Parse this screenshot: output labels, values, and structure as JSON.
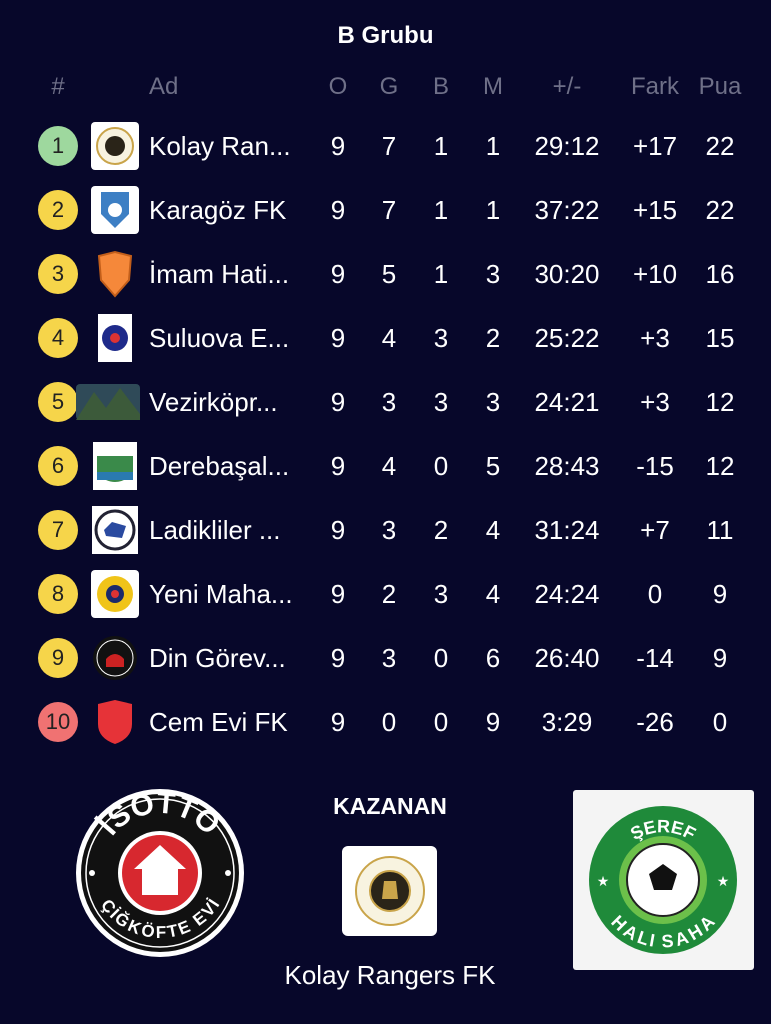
{
  "title": "B Grubu",
  "columns": {
    "pos": "#",
    "name": "Ad",
    "played": "O",
    "won": "G",
    "drawn": "B",
    "lost": "M",
    "goals": "+/-",
    "diff": "Fark",
    "points": "Pua"
  },
  "colors": {
    "background": "#07072a",
    "promotion": "#9ed89e",
    "mid": "#f6d54a",
    "relegation": "#f07272",
    "header_text": "#6f7088"
  },
  "rows": [
    {
      "pos": "1",
      "zone": "promotion",
      "name": "Kolay Ran...",
      "o": "9",
      "g": "7",
      "b": "1",
      "m": "1",
      "goals": "29:12",
      "diff": "+17",
      "pts": "22",
      "logo": "kolay-rangers-logo"
    },
    {
      "pos": "2",
      "zone": "mid",
      "name": "Karagöz FK",
      "o": "9",
      "g": "7",
      "b": "1",
      "m": "1",
      "goals": "37:22",
      "diff": "+15",
      "pts": "22",
      "logo": "karagoz-logo"
    },
    {
      "pos": "3",
      "zone": "mid",
      "name": "İmam Hati...",
      "o": "9",
      "g": "5",
      "b": "1",
      "m": "3",
      "goals": "30:20",
      "diff": "+10",
      "pts": "16",
      "logo": "orange-shield-logo"
    },
    {
      "pos": "4",
      "zone": "mid",
      "name": "Suluova E...",
      "o": "9",
      "g": "4",
      "b": "3",
      "m": "2",
      "goals": "25:22",
      "diff": "+3",
      "pts": "15",
      "logo": "police-logo"
    },
    {
      "pos": "5",
      "zone": "mid",
      "name": "Vezirköpr...",
      "o": "9",
      "g": "3",
      "b": "3",
      "m": "3",
      "goals": "24:21",
      "diff": "+3",
      "pts": "12",
      "logo": "landscape-photo"
    },
    {
      "pos": "6",
      "zone": "mid",
      "name": "Derebaşal...",
      "o": "9",
      "g": "4",
      "b": "0",
      "m": "5",
      "goals": "28:43",
      "diff": "-15",
      "pts": "12",
      "logo": "derebasalan-logo"
    },
    {
      "pos": "7",
      "zone": "mid",
      "name": "Ladikliler ...",
      "o": "9",
      "g": "3",
      "b": "2",
      "m": "4",
      "goals": "31:24",
      "diff": "+7",
      "pts": "11",
      "logo": "ladikliler-logo"
    },
    {
      "pos": "8",
      "zone": "mid",
      "name": "Yeni Maha...",
      "o": "9",
      "g": "2",
      "b": "3",
      "m": "4",
      "goals": "24:24",
      "diff": "0",
      "pts": "9",
      "logo": "yeni-mahalle-logo"
    },
    {
      "pos": "9",
      "zone": "mid",
      "name": "Din Görev...",
      "o": "9",
      "g": "3",
      "b": "0",
      "m": "6",
      "goals": "26:40",
      "diff": "-14",
      "pts": "9",
      "logo": "din-gorevlileri-logo"
    },
    {
      "pos": "10",
      "zone": "relegation",
      "name": "Cem Evi FK",
      "o": "9",
      "g": "0",
      "b": "0",
      "m": "9",
      "goals": "3:29",
      "diff": "-26",
      "pts": "0",
      "logo": "red-shield-logo"
    }
  ],
  "winner": {
    "label": "KAZANAN",
    "name": "Kolay Rangers FK"
  },
  "sponsors": {
    "left": {
      "top": "İSOTTO",
      "bottom": "ÇİĞKÖFTE EVİ"
    },
    "right": {
      "top": "ŞEREF",
      "bottom": "HALI SAHA"
    }
  }
}
